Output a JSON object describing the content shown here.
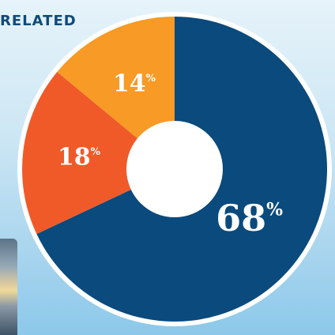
{
  "heading": "RELATED",
  "colors": {
    "navy": "#0a4a7c",
    "orange_red": "#f05a28",
    "orange": "#f79a26",
    "ring": "#ffffff"
  },
  "chart_data": {
    "type": "pie",
    "style": "donut",
    "title": "",
    "slices": [
      {
        "value": 68,
        "label": "68",
        "unit": "%",
        "color": "#0a4a7c"
      },
      {
        "value": 18,
        "label": "18",
        "unit": "%",
        "color": "#f05a28"
      },
      {
        "value": 14,
        "label": "14",
        "unit": "%",
        "color": "#f79a26"
      }
    ],
    "start": "top",
    "direction": "clockwise"
  }
}
